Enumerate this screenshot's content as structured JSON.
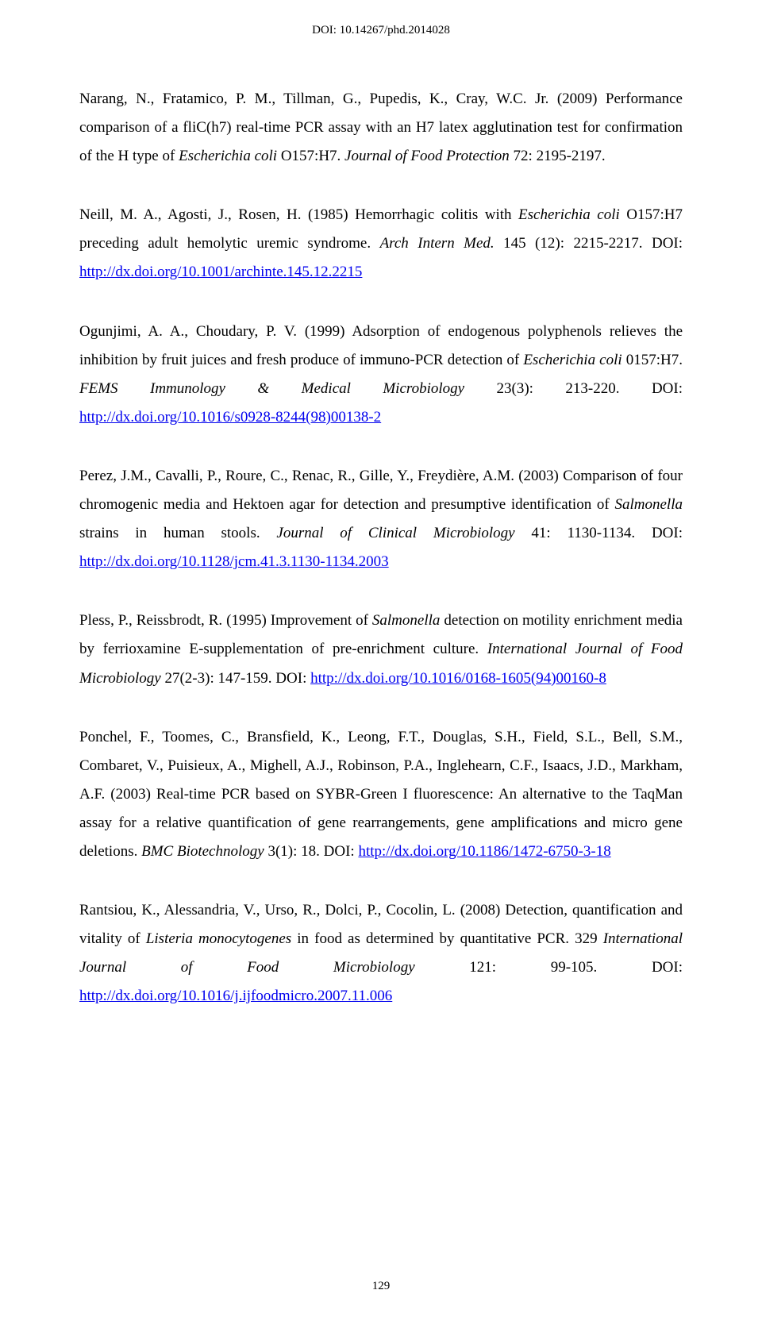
{
  "header": {
    "doi": "DOI: 10.14267/phd.2014028"
  },
  "footer": {
    "page": "129"
  },
  "refs": [
    {
      "text_parts": [
        {
          "t": "Narang, N., Fratamico, P. M., Tillman, G., Pupedis, K., Cray, W.C. Jr. (2009) Performance comparison of a fliC(h7) real-time PCR assay with an H7 latex agglutination test for confirmation of the H type of "
        },
        {
          "t": "Escherichia coli",
          "i": true
        },
        {
          "t": " O157:H7. "
        },
        {
          "t": "Journal of Food Protection",
          "i": true
        },
        {
          "t": " 72: 2195-2197."
        }
      ]
    },
    {
      "text_parts": [
        {
          "t": "Neill, M. A., Agosti, J., Rosen, H. (1985) Hemorrhagic colitis with "
        },
        {
          "t": "Escherichia coli",
          "i": true
        },
        {
          "t": " O157:H7 preceding adult hemolytic uremic syndrome. "
        },
        {
          "t": "Arch Intern Med.",
          "i": true
        },
        {
          "t": " 145 (12): 2215-2217. DOI: "
        }
      ],
      "link": "http://dx.doi.org/10.1001/archinte.145.12.2215"
    },
    {
      "text_parts": [
        {
          "t": "Ogunjimi, A. A., Choudary, P. V. (1999) Adsorption of endogenous polyphenols relieves the inhibition by fruit juices and fresh produce of immuno-PCR detection of "
        },
        {
          "t": "Escherichia coli",
          "i": true
        },
        {
          "t": " 0157:H7. "
        },
        {
          "t": "FEMS Immunology & Medical Microbiology",
          "i": true
        },
        {
          "t": " 23(3): 213-220. DOI: "
        }
      ],
      "link": "http://dx.doi.org/10.1016/s0928-8244(98)00138-2"
    },
    {
      "text_parts": [
        {
          "t": "Perez, J.M., Cavalli, P., Roure, C., Renac, R., Gille, Y., Freydière, A.M. (2003) Comparison of four chromogenic media and Hektoen agar for detection and presumptive identification of "
        },
        {
          "t": "Salmonella",
          "i": true
        },
        {
          "t": " strains in human stools. "
        },
        {
          "t": "Journal of Clinical Microbiology",
          "i": true
        },
        {
          "t": " 41: 1130-1134. DOI: "
        }
      ],
      "link": "http://dx.doi.org/10.1128/jcm.41.3.1130-1134.2003"
    },
    {
      "text_parts": [
        {
          "t": "Pless, P., Reissbrodt, R. (1995) Improvement of "
        },
        {
          "t": "Salmonella",
          "i": true
        },
        {
          "t": " detection on motility enrichment media by ferrioxamine E-supplementation of pre-enrichment culture. "
        },
        {
          "t": "International Journal of Food Microbiology",
          "i": true
        },
        {
          "t": " 27(2-3): 147-159. DOI: "
        }
      ],
      "link": "http://dx.doi.org/10.1016/0168-1605(94)00160-8"
    },
    {
      "text_parts": [
        {
          "t": "Ponchel, F., Toomes, C., Bransfield, K., Leong, F.T., Douglas, S.H., Field, S.L., Bell, S.M., Combaret, V., Puisieux, A., Mighell, A.J., Robinson, P.A., Inglehearn, C.F., Isaacs, J.D., Markham, A.F. (2003) Real-time PCR based on SYBR-Green I fluorescence: An alternative to the TaqMan assay for a relative quantification of gene rearrangements, gene amplifications and micro gene deletions. "
        },
        {
          "t": "BMC Biotechnology",
          "i": true
        },
        {
          "t": " 3(1): 18. DOI: "
        }
      ],
      "link": "http://dx.doi.org/10.1186/1472-6750-3-18"
    },
    {
      "text_parts": [
        {
          "t": "Rantsiou, K., Alessandria, V., Urso, R., Dolci, P., Cocolin, L. (2008) Detection, quantification and vitality of "
        },
        {
          "t": "Listeria monocytogenes",
          "i": true
        },
        {
          "t": " in food as determined by quantitative PCR. 329 "
        },
        {
          "t": "International Journal of Food Microbiology",
          "i": true
        },
        {
          "t": " 121: 99-105. DOI: "
        }
      ],
      "link": "http://dx.doi.org/10.1016/j.ijfoodmicro.2007.11.006"
    }
  ]
}
